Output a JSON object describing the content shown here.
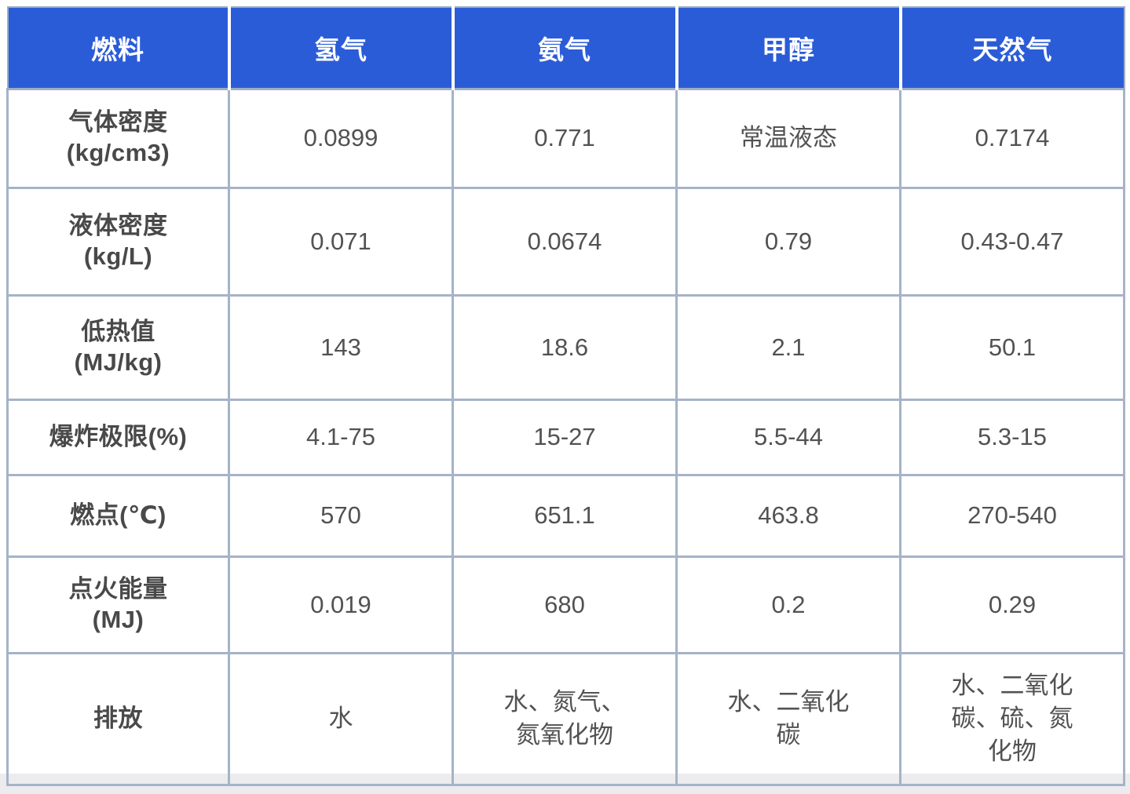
{
  "colors": {
    "header_bg": "#2b5cd8",
    "header_text": "#ffffff",
    "body_border": "#a6b3c8",
    "cell_text": "#525252"
  },
  "table": {
    "header": {
      "col0": "燃料",
      "cols": [
        "氢气",
        "氨气",
        "甲醇",
        "天然气"
      ]
    },
    "rows": [
      {
        "label": "气体密度\n(kg/cm3)",
        "values": [
          "0.0899",
          "0.771",
          "常温液态",
          "0.7174"
        ]
      },
      {
        "label": "液体密度\n(kg/L)",
        "values": [
          "0.071",
          "0.0674",
          "0.79",
          "0.43-0.47"
        ]
      },
      {
        "label": "低热值\n(MJ/kg)",
        "values": [
          "143",
          "18.6",
          "2.1",
          "50.1"
        ]
      },
      {
        "label": "爆炸极限(%)",
        "values": [
          "4.1-75",
          "15-27",
          "5.5-44",
          "5.3-15"
        ]
      },
      {
        "label": "燃点(℃)",
        "values": [
          "570",
          "651.1",
          "463.8",
          "270-540"
        ]
      },
      {
        "label": "点火能量\n(MJ)",
        "values": [
          "0.019",
          "680",
          "0.2",
          "0.29"
        ]
      },
      {
        "label": "排放",
        "values": [
          "水",
          "水、氮气、\n氮氧化物",
          "水、二氧化\n碳",
          "水、二氧化\n碳、硫、氮\n化物"
        ]
      }
    ]
  }
}
